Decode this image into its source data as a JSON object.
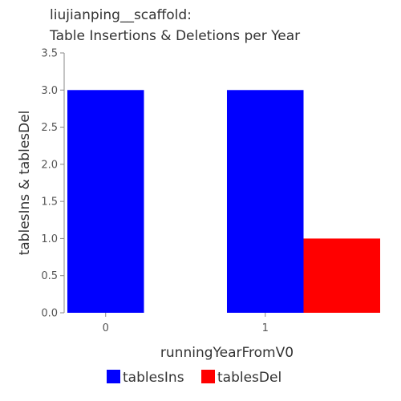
{
  "chart_data": {
    "type": "bar",
    "title_lines": [
      "liujianping__scaffold:",
      "Table Insertions & Deletions per Year"
    ],
    "xlabel": "runningYearFromV0",
    "ylabel": "tablesIns & tablesDel",
    "categories": [
      "0",
      "1"
    ],
    "series": [
      {
        "name": "tablesIns",
        "values": [
          3,
          3
        ],
        "color": "#0000ff"
      },
      {
        "name": "tablesDel",
        "values": [
          0,
          1
        ],
        "color": "#ff0000"
      }
    ],
    "ylim": [
      0,
      3.5
    ],
    "yticks": [
      "0.0",
      "0.5",
      "1.0",
      "1.5",
      "2.0",
      "2.5",
      "3.0",
      "3.5"
    ],
    "grid": false,
    "legend_position": "bottom"
  }
}
